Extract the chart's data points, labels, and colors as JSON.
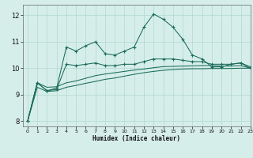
{
  "xlabel": "Humidex (Indice chaleur)",
  "xlim": [
    -0.5,
    23
  ],
  "ylim": [
    7.8,
    12.4
  ],
  "xticks": [
    0,
    1,
    2,
    3,
    4,
    5,
    6,
    7,
    8,
    9,
    10,
    11,
    12,
    13,
    14,
    15,
    16,
    17,
    18,
    19,
    20,
    21,
    22,
    23
  ],
  "yticks": [
    8,
    9,
    10,
    11,
    12
  ],
  "bg_color": "#d6eeea",
  "grid_color": "#b0d8d0",
  "line_color": "#1a6b5a",
  "line1_x": [
    0,
    1,
    2,
    3,
    4,
    5,
    6,
    7,
    8,
    9,
    10,
    11,
    12,
    13,
    14,
    15,
    16,
    17,
    18,
    19,
    20,
    21,
    22,
    23
  ],
  "line1_y": [
    8.0,
    9.45,
    9.15,
    9.25,
    10.8,
    10.65,
    10.85,
    11.0,
    10.55,
    10.5,
    10.65,
    10.8,
    11.55,
    12.05,
    11.85,
    11.55,
    11.1,
    10.5,
    10.35,
    10.05,
    10.05,
    10.15,
    10.2,
    10.0
  ],
  "line2_x": [
    0,
    1,
    2,
    3,
    4,
    5,
    6,
    7,
    8,
    9,
    10,
    11,
    12,
    13,
    14,
    15,
    16,
    17,
    18,
    19,
    20,
    21,
    22,
    23
  ],
  "line2_y": [
    8.0,
    9.45,
    9.15,
    9.2,
    10.15,
    10.1,
    10.15,
    10.2,
    10.1,
    10.1,
    10.15,
    10.15,
    10.25,
    10.35,
    10.35,
    10.35,
    10.3,
    10.25,
    10.25,
    10.15,
    10.15,
    10.15,
    10.2,
    10.05
  ],
  "line3_x": [
    0,
    1,
    2,
    3,
    4,
    5,
    6,
    7,
    8,
    9,
    10,
    11,
    12,
    13,
    14,
    15,
    16,
    17,
    18,
    19,
    20,
    21,
    22,
    23
  ],
  "line3_y": [
    8.0,
    9.45,
    9.28,
    9.3,
    9.45,
    9.52,
    9.62,
    9.72,
    9.78,
    9.83,
    9.88,
    9.93,
    9.97,
    10.02,
    10.06,
    10.07,
    10.08,
    10.09,
    10.1,
    10.1,
    10.08,
    10.08,
    10.1,
    10.0
  ],
  "line4_x": [
    0,
    1,
    2,
    3,
    4,
    5,
    6,
    7,
    8,
    9,
    10,
    11,
    12,
    13,
    14,
    15,
    16,
    17,
    18,
    19,
    20,
    21,
    22,
    23
  ],
  "line4_y": [
    8.0,
    9.28,
    9.12,
    9.15,
    9.28,
    9.35,
    9.43,
    9.5,
    9.58,
    9.63,
    9.7,
    9.77,
    9.83,
    9.88,
    9.92,
    9.95,
    9.97,
    9.98,
    9.98,
    9.99,
    9.99,
    9.99,
    10.0,
    10.0
  ]
}
